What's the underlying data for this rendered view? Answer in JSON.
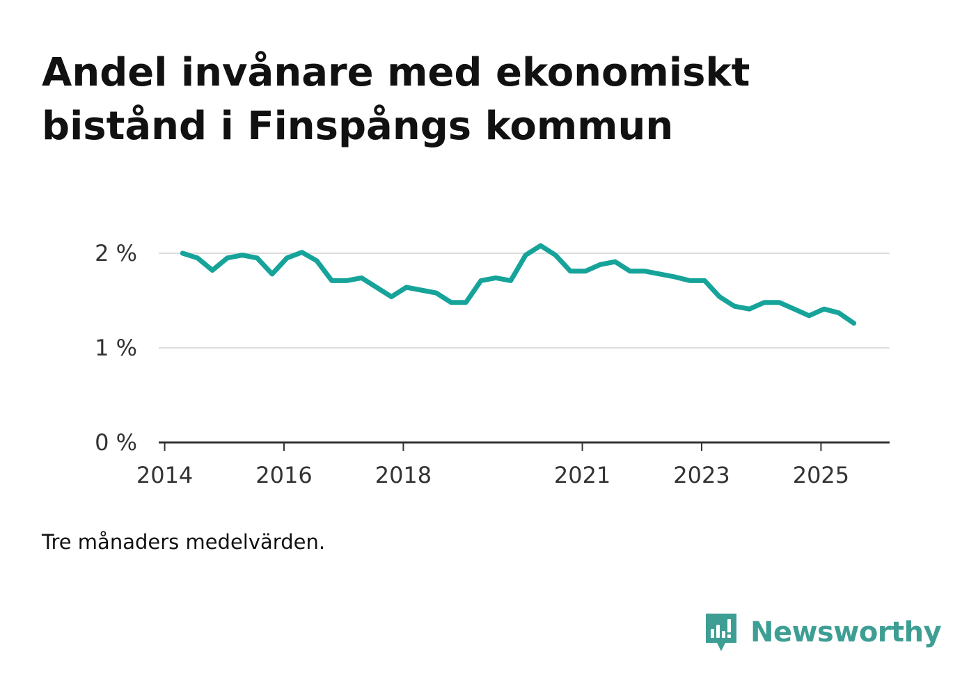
{
  "title": "Andel invånare med ekonomiskt bistånd i Finspångs kommun",
  "note": "Tre månaders medelvärden.",
  "brand": {
    "name": "Newsworthy",
    "icon": "newsworthy-logo-icon",
    "color": "#3d9e94"
  },
  "colors": {
    "line": "#16a39a",
    "grid": "#dddddd",
    "axis": "#333333"
  },
  "chart_data": {
    "type": "line",
    "title": "Andel invånare med ekonomiskt bistånd i Finspångs kommun",
    "xlabel": "",
    "ylabel": "",
    "ylim": [
      0,
      2.25
    ],
    "xlim": [
      2013.9,
      2026.15
    ],
    "grid": true,
    "yticks": [
      {
        "value": 0,
        "label": "0 %"
      },
      {
        "value": 1,
        "label": "1 %"
      },
      {
        "value": 2,
        "label": "2 %"
      }
    ],
    "xticks": [
      {
        "value": 2014,
        "label": "2014"
      },
      {
        "value": 2016,
        "label": "2016"
      },
      {
        "value": 2018,
        "label": "2018"
      },
      {
        "value": 2021,
        "label": "2021"
      },
      {
        "value": 2023,
        "label": "2023"
      },
      {
        "value": 2025,
        "label": "2025"
      }
    ],
    "series": [
      {
        "name": "Andel invånare med ekonomiskt bistånd",
        "x": [
          2014.3,
          2014.55,
          2014.8,
          2015.05,
          2015.3,
          2015.55,
          2015.8,
          2016.05,
          2016.3,
          2016.55,
          2016.8,
          2017.05,
          2017.3,
          2017.55,
          2017.8,
          2018.05,
          2018.3,
          2018.55,
          2018.8,
          2019.05,
          2019.3,
          2019.55,
          2019.8,
          2020.05,
          2020.3,
          2020.55,
          2020.8,
          2021.05,
          2021.3,
          2021.55,
          2021.8,
          2022.05,
          2022.3,
          2022.55,
          2022.8,
          2023.05,
          2023.3,
          2023.55,
          2023.8,
          2024.05,
          2024.3,
          2024.55,
          2024.8,
          2025.05,
          2025.3,
          2025.55
        ],
        "values": [
          2.0,
          1.95,
          1.82,
          1.95,
          1.98,
          1.95,
          1.78,
          1.95,
          2.01,
          1.92,
          1.71,
          1.71,
          1.74,
          1.64,
          1.54,
          1.64,
          1.61,
          1.58,
          1.48,
          1.48,
          1.71,
          1.74,
          1.71,
          1.98,
          2.08,
          1.98,
          1.81,
          1.81,
          1.88,
          1.91,
          1.81,
          1.81,
          1.78,
          1.75,
          1.71,
          1.71,
          1.54,
          1.44,
          1.41,
          1.48,
          1.48,
          1.41,
          1.34,
          1.41,
          1.37,
          1.26
        ]
      }
    ]
  }
}
